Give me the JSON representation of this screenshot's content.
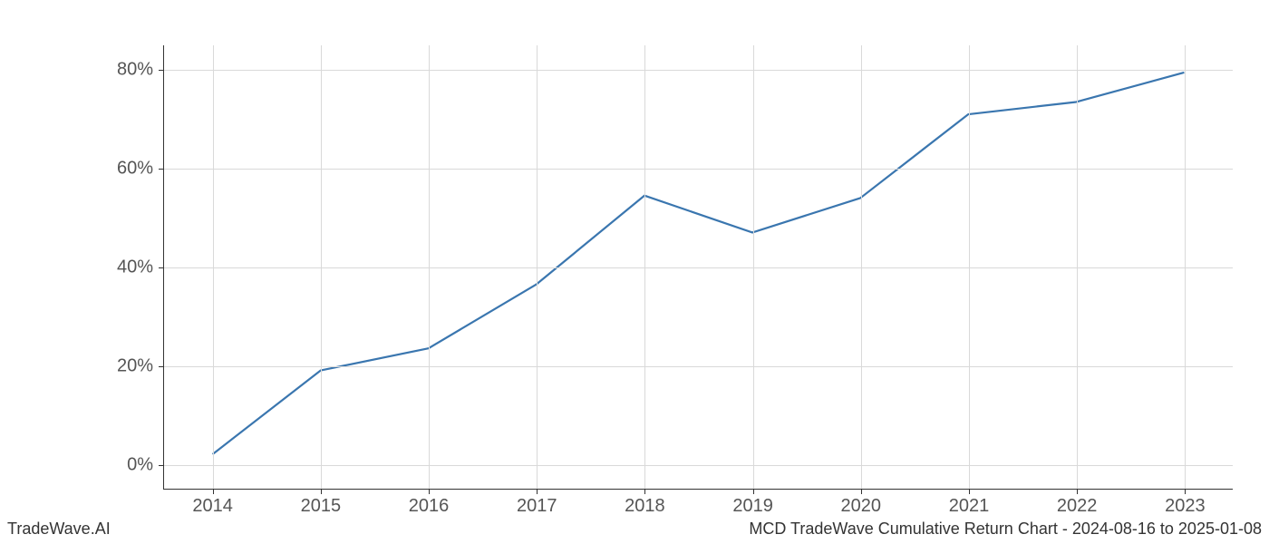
{
  "chart": {
    "type": "line",
    "background_color": "#ffffff",
    "grid_color": "#d9d9d9",
    "axis_color": "#333333",
    "line_color": "#3a76af",
    "line_width": 2.2,
    "tick_label_color": "#555555",
    "tick_label_fontsize": 20,
    "x": {
      "values": [
        2014,
        2015,
        2016,
        2017,
        2018,
        2019,
        2020,
        2021,
        2022,
        2023
      ],
      "tick_labels": [
        "2014",
        "2015",
        "2016",
        "2017",
        "2018",
        "2019",
        "2020",
        "2021",
        "2022",
        "2023"
      ],
      "lim": [
        2013.55,
        2023.45
      ]
    },
    "y": {
      "values": [
        2,
        19,
        23.5,
        36.5,
        54.5,
        47,
        54,
        71,
        73.5,
        79.5
      ],
      "ticks": [
        0,
        20,
        40,
        60,
        80
      ],
      "tick_labels": [
        "0%",
        "20%",
        "40%",
        "60%",
        "80%"
      ],
      "lim": [
        -5,
        85
      ]
    }
  },
  "footer": {
    "left": "TradeWave.AI",
    "right": "MCD TradeWave Cumulative Return Chart - 2024-08-16 to 2025-01-08",
    "fontsize": 18,
    "color": "#333333"
  }
}
